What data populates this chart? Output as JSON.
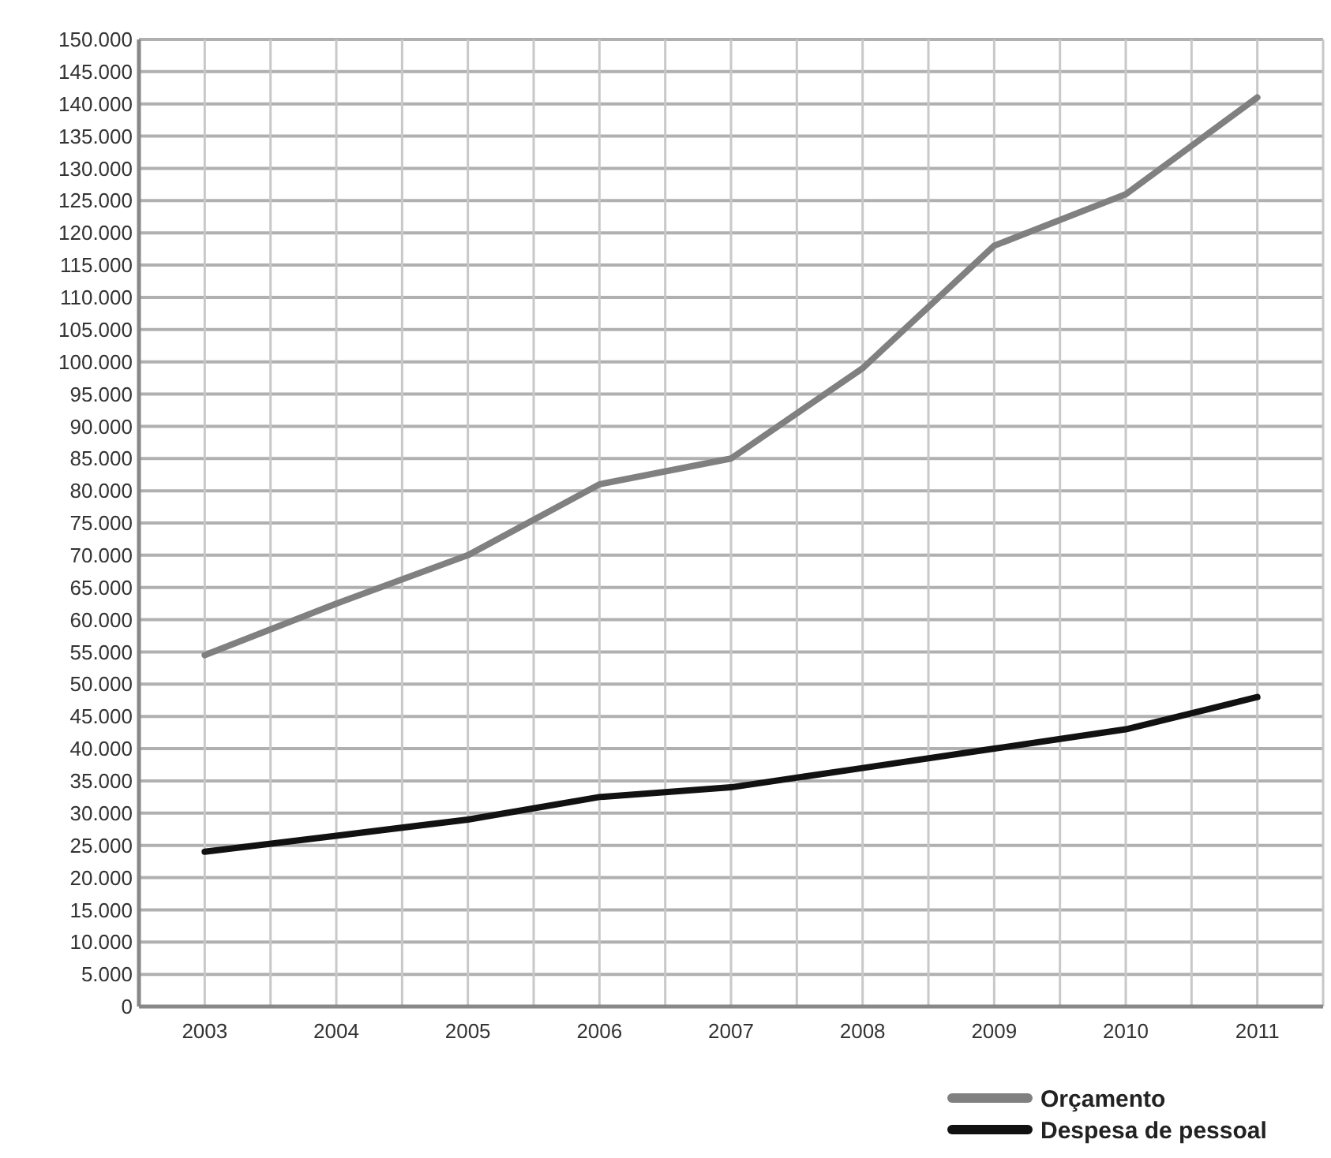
{
  "chart_data": {
    "type": "line",
    "categories": [
      "2003",
      "2004",
      "2005",
      "2006",
      "2007",
      "2008",
      "2009",
      "2010",
      "2011"
    ],
    "series": [
      {
        "name": "Orçamento",
        "color": "#808080",
        "values": [
          54500,
          62500,
          70000,
          81000,
          85000,
          99000,
          118000,
          126000,
          141000
        ]
      },
      {
        "name": "Despesa de pessoal",
        "color": "#111111",
        "values": [
          24000,
          26500,
          29000,
          32500,
          34000,
          37000,
          40000,
          43000,
          48000
        ]
      }
    ],
    "ylim": [
      0,
      150000
    ],
    "yticks": [
      {
        "value": 0,
        "label": "0"
      },
      {
        "value": 5000,
        "label": "5.000"
      },
      {
        "value": 10000,
        "label": "10.000"
      },
      {
        "value": 15000,
        "label": "15.000"
      },
      {
        "value": 20000,
        "label": "20.000"
      },
      {
        "value": 25000,
        "label": "25.000"
      },
      {
        "value": 30000,
        "label": "30.000"
      },
      {
        "value": 35000,
        "label": "35.000"
      },
      {
        "value": 40000,
        "label": "40.000"
      },
      {
        "value": 45000,
        "label": "45.000"
      },
      {
        "value": 50000,
        "label": "50.000"
      },
      {
        "value": 55000,
        "label": "55.000"
      },
      {
        "value": 60000,
        "label": "60.000"
      },
      {
        "value": 65000,
        "label": "65.000"
      },
      {
        "value": 70000,
        "label": "70.000"
      },
      {
        "value": 75000,
        "label": "75.000"
      },
      {
        "value": 80000,
        "label": "80.000"
      },
      {
        "value": 85000,
        "label": "85.000"
      },
      {
        "value": 90000,
        "label": "90.000"
      },
      {
        "value": 95000,
        "label": "95.000"
      },
      {
        "value": 100000,
        "label": "100.000"
      },
      {
        "value": 105000,
        "label": "105.000"
      },
      {
        "value": 110000,
        "label": "110.000"
      },
      {
        "value": 115000,
        "label": "115.000"
      },
      {
        "value": 120000,
        "label": "120.000"
      },
      {
        "value": 125000,
        "label": "125.000"
      },
      {
        "value": 130000,
        "label": "130.000"
      },
      {
        "value": 135000,
        "label": "135.000"
      },
      {
        "value": 140000,
        "label": "140.000"
      },
      {
        "value": 145000,
        "label": "145.000"
      },
      {
        "value": 150000,
        "label": "150.000"
      }
    ],
    "grid": true,
    "legend": "bottom right",
    "marker": "none",
    "line_style": "solid"
  }
}
